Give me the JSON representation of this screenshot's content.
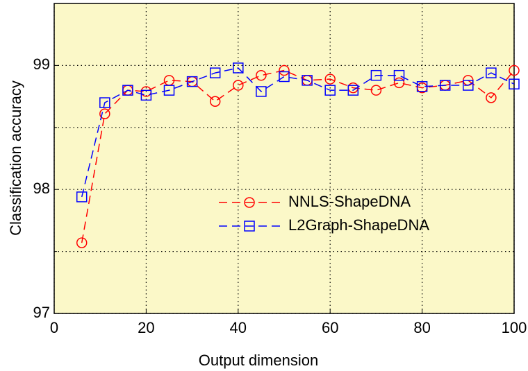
{
  "chart_data": {
    "type": "line",
    "xlabel": "Output dimension",
    "ylabel": "Classification accuracy",
    "x": [
      6,
      11,
      16,
      20,
      25,
      30,
      35,
      40,
      45,
      50,
      55,
      60,
      65,
      70,
      75,
      80,
      85,
      90,
      95,
      100
    ],
    "series": [
      {
        "name": "NNLS-ShapeDNA",
        "color": "#ff0000",
        "marker": "circle",
        "values": [
          97.57,
          98.61,
          98.8,
          98.79,
          98.88,
          98.87,
          98.71,
          98.84,
          98.92,
          98.96,
          98.88,
          98.89,
          98.82,
          98.8,
          98.86,
          98.82,
          98.84,
          98.88,
          98.74,
          98.96
        ]
      },
      {
        "name": "L2Graph-ShapeDNA",
        "color": "#0000ff",
        "marker": "square",
        "values": [
          97.94,
          98.7,
          98.8,
          98.76,
          98.8,
          98.87,
          98.94,
          98.98,
          98.79,
          98.91,
          98.88,
          98.8,
          98.8,
          98.92,
          98.92,
          98.83,
          98.84,
          98.84,
          98.94,
          98.85
        ]
      }
    ],
    "xlim": [
      0,
      100
    ],
    "xticks": [
      0,
      20,
      40,
      60,
      80,
      100
    ],
    "ylim": [
      97,
      99.5
    ],
    "yticks": [
      97,
      98,
      99
    ],
    "yminor": [
      97.5,
      98.5
    ],
    "grid": true,
    "legend": "center-right",
    "background": "#fbf8c8"
  }
}
